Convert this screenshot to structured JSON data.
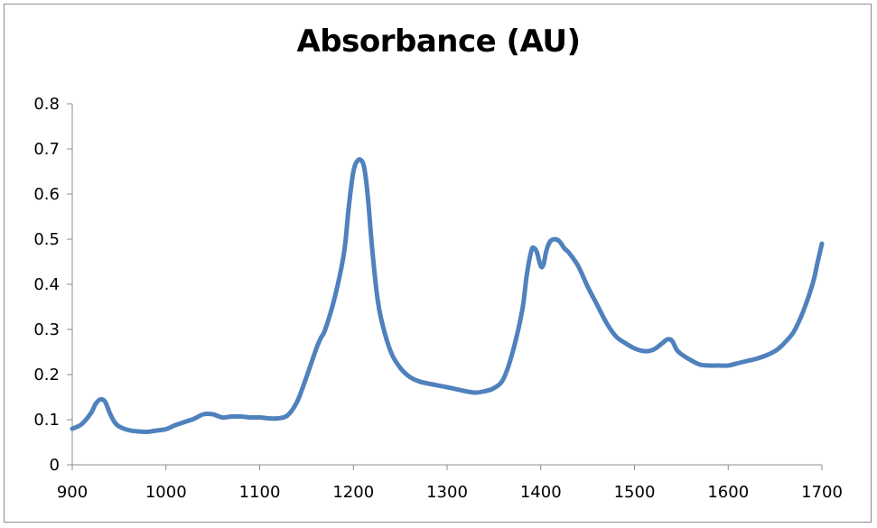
{
  "chart_data": {
    "type": "line",
    "title": "Absorbance (AU)",
    "xlabel": "",
    "ylabel": "",
    "xlim": [
      900,
      1700
    ],
    "ylim": [
      0,
      0.8
    ],
    "x_ticks": [
      900,
      1000,
      1100,
      1200,
      1300,
      1400,
      1500,
      1600,
      1700
    ],
    "y_ticks": [
      0,
      0.1,
      0.2,
      0.3,
      0.4,
      0.5,
      0.6,
      0.7,
      0.8
    ],
    "y_tick_labels": [
      "0",
      "0.1",
      "0.2",
      "0.3",
      "0.4",
      "0.5",
      "0.6",
      "0.7",
      "0.8"
    ],
    "grid": false,
    "legend": "none",
    "series": [
      {
        "color": "#4f81bd",
        "x": [
          900,
          910,
          920,
          925,
          930,
          935,
          940,
          945,
          950,
          960,
          970,
          980,
          990,
          1000,
          1010,
          1020,
          1030,
          1040,
          1050,
          1060,
          1070,
          1080,
          1090,
          1100,
          1110,
          1120,
          1130,
          1140,
          1150,
          1160,
          1165,
          1170,
          1180,
          1190,
          1195,
          1200,
          1205,
          1210,
          1213,
          1216,
          1220,
          1225,
          1230,
          1240,
          1250,
          1260,
          1270,
          1280,
          1300,
          1320,
          1330,
          1340,
          1350,
          1360,
          1370,
          1380,
          1385,
          1390,
          1393,
          1396,
          1400,
          1403,
          1406,
          1410,
          1415,
          1420,
          1425,
          1430,
          1440,
          1450,
          1460,
          1470,
          1480,
          1490,
          1500,
          1510,
          1520,
          1530,
          1535,
          1540,
          1545,
          1550,
          1560,
          1570,
          1580,
          1590,
          1600,
          1610,
          1620,
          1630,
          1640,
          1650,
          1655,
          1660,
          1670,
          1680,
          1690,
          1695,
          1700
        ],
        "y": [
          0.08,
          0.09,
          0.115,
          0.135,
          0.145,
          0.14,
          0.115,
          0.095,
          0.085,
          0.077,
          0.074,
          0.073,
          0.076,
          0.079,
          0.088,
          0.095,
          0.102,
          0.112,
          0.112,
          0.105,
          0.107,
          0.107,
          0.105,
          0.105,
          0.103,
          0.103,
          0.11,
          0.14,
          0.195,
          0.255,
          0.28,
          0.3,
          0.37,
          0.47,
          0.57,
          0.65,
          0.675,
          0.67,
          0.64,
          0.58,
          0.48,
          0.38,
          0.32,
          0.25,
          0.215,
          0.195,
          0.185,
          0.18,
          0.172,
          0.163,
          0.16,
          0.163,
          0.17,
          0.19,
          0.25,
          0.34,
          0.42,
          0.475,
          0.48,
          0.47,
          0.44,
          0.445,
          0.475,
          0.495,
          0.5,
          0.495,
          0.48,
          0.47,
          0.44,
          0.395,
          0.355,
          0.315,
          0.285,
          0.27,
          0.258,
          0.252,
          0.255,
          0.27,
          0.278,
          0.275,
          0.255,
          0.245,
          0.232,
          0.222,
          0.22,
          0.22,
          0.22,
          0.225,
          0.23,
          0.235,
          0.242,
          0.252,
          0.26,
          0.27,
          0.295,
          0.34,
          0.4,
          0.445,
          0.49
        ]
      }
    ]
  }
}
